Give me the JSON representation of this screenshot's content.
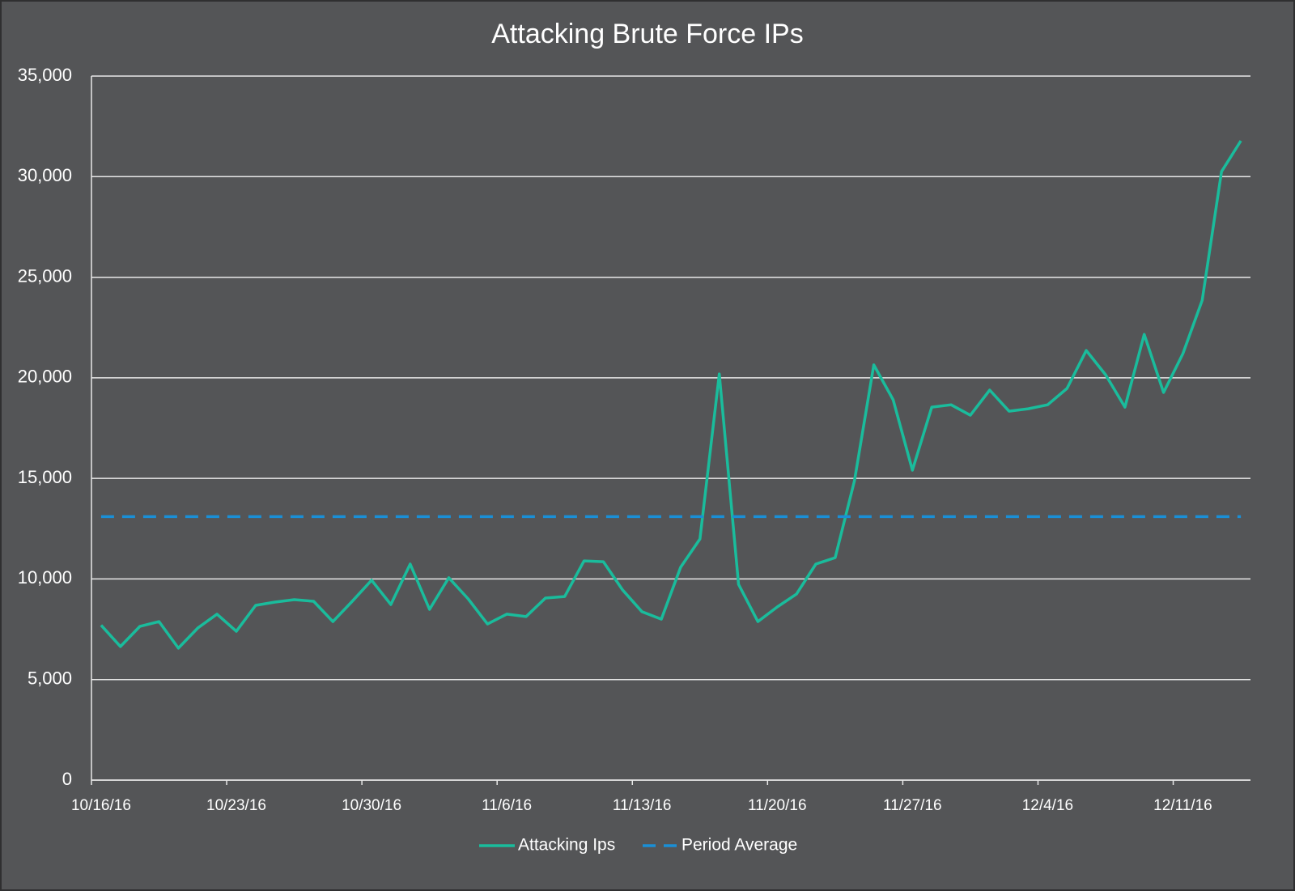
{
  "chart_data": {
    "type": "line",
    "title": "Attacking Brute Force IPs",
    "categories": [
      "10/16/16",
      null,
      null,
      null,
      null,
      null,
      null,
      "10/23/16",
      null,
      null,
      null,
      null,
      null,
      null,
      "10/30/16",
      null,
      null,
      null,
      null,
      null,
      null,
      "11/6/16",
      null,
      null,
      null,
      null,
      null,
      null,
      "11/13/16",
      null,
      null,
      null,
      null,
      null,
      null,
      "11/20/16",
      null,
      null,
      null,
      null,
      null,
      null,
      "11/27/16",
      null,
      null,
      null,
      null,
      null,
      null,
      "12/4/16",
      null,
      null,
      null,
      null,
      null,
      null,
      "12/11/16",
      null,
      null,
      null
    ],
    "series": [
      {
        "name": "Attacking Ips",
        "color": "#1abc9c",
        "dash": false,
        "values": [
          7700,
          6640,
          7640,
          7880,
          6560,
          7560,
          8250,
          7400,
          8690,
          8850,
          8970,
          8890,
          7880,
          8890,
          9940,
          8730,
          10740,
          8490,
          10060,
          9010,
          7760,
          8250,
          8130,
          9050,
          9130,
          10900,
          10860,
          9450,
          8370,
          8000,
          10580,
          11990,
          20190,
          9730,
          7880,
          8610,
          9250,
          10740,
          11060,
          14880,
          20640,
          18910,
          15410,
          18540,
          18660,
          18140,
          19390,
          18340,
          18460,
          18660,
          19470,
          21360,
          20150,
          18540,
          22160,
          19270,
          21200,
          23850,
          30250,
          31780
        ]
      },
      {
        "name": "Period Average",
        "color": "#1a8fd6",
        "dash": true,
        "values": [
          13100,
          13100,
          13100,
          13100,
          13100,
          13100,
          13100,
          13100,
          13100,
          13100,
          13100,
          13100,
          13100,
          13100,
          13100,
          13100,
          13100,
          13100,
          13100,
          13100,
          13100,
          13100,
          13100,
          13100,
          13100,
          13100,
          13100,
          13100,
          13100,
          13100,
          13100,
          13100,
          13100,
          13100,
          13100,
          13100,
          13100,
          13100,
          13100,
          13100,
          13100,
          13100,
          13100,
          13100,
          13100,
          13100,
          13100,
          13100,
          13100,
          13100,
          13100,
          13100,
          13100,
          13100,
          13100,
          13100,
          13100,
          13100,
          13100,
          13100
        ]
      }
    ],
    "ylim": [
      0,
      35000
    ],
    "yticks": [
      0,
      {
        "value": 5000,
        "label": "5,000"
      },
      {
        "value": 10000,
        "label": "10,000"
      },
      {
        "value": 15000,
        "label": "15,000"
      },
      {
        "value": 20000,
        "label": "20,000"
      },
      {
        "value": 25000,
        "label": "25,000"
      },
      {
        "value": 30000,
        "label": "30,000"
      },
      {
        "value": 35000,
        "label": "35,000"
      }
    ],
    "grid": true,
    "legend": "bottom"
  }
}
